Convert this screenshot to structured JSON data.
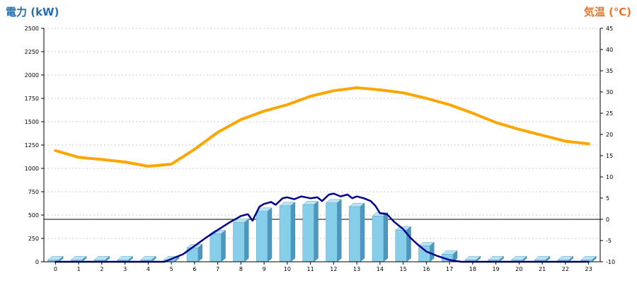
{
  "chart_data": {
    "type": "bar",
    "left_axis_title": "電力 (kW)",
    "right_axis_title": "気温 (℃)",
    "left_ylim": [
      0,
      2500
    ],
    "right_ylim": [
      -10,
      45
    ],
    "left_ticks": [
      0,
      250,
      500,
      750,
      1000,
      1250,
      1500,
      1750,
      2000,
      2250,
      2500
    ],
    "right_ticks": [
      -10,
      -5,
      0,
      5,
      10,
      15,
      20,
      25,
      30,
      35,
      40,
      45
    ],
    "categories": [
      "0",
      "1",
      "2",
      "3",
      "4",
      "5",
      "6",
      "7",
      "8",
      "9",
      "10",
      "11",
      "12",
      "13",
      "14",
      "15",
      "16",
      "17",
      "18",
      "19",
      "20",
      "21",
      "22",
      "23"
    ],
    "grid": "horizontal dashed",
    "reference_line": {
      "axis": "right",
      "value": 0
    },
    "series": [
      {
        "kind": "bar3d",
        "axis": "left",
        "color": "#87ceeb",
        "values": [
          20,
          20,
          20,
          20,
          20,
          20,
          150,
          300,
          420,
          540,
          600,
          610,
          630,
          590,
          490,
          340,
          170,
          80,
          20,
          20,
          20,
          20,
          20,
          20
        ]
      },
      {
        "kind": "line",
        "axis": "left",
        "color": "#00008b",
        "x": [
          0,
          1,
          2,
          3,
          4,
          4.7,
          5,
          5.5,
          6,
          6.5,
          7,
          7.5,
          8,
          8.3,
          8.5,
          8.8,
          9,
          9.3,
          9.5,
          9.8,
          10,
          10.3,
          10.6,
          11,
          11.3,
          11.5,
          11.8,
          12,
          12.3,
          12.6,
          12.8,
          13,
          13.3,
          13.6,
          13.8,
          14,
          14.3,
          14.6,
          15,
          15.3,
          15.6,
          16,
          16.5,
          17,
          17.5,
          18,
          19,
          20,
          21,
          22,
          23
        ],
        "values": [
          0,
          0,
          0,
          0,
          0,
          0,
          30,
          80,
          170,
          260,
          340,
          420,
          490,
          510,
          440,
          590,
          620,
          640,
          610,
          680,
          690,
          670,
          700,
          680,
          690,
          650,
          720,
          730,
          700,
          720,
          680,
          700,
          680,
          650,
          600,
          520,
          510,
          430,
          350,
          260,
          190,
          110,
          60,
          20,
          0,
          0,
          0,
          0,
          0,
          0,
          0
        ]
      },
      {
        "kind": "line",
        "axis": "right",
        "color": "#ffa500",
        "x": [
          0,
          1,
          2,
          3,
          4,
          5,
          6,
          7,
          8,
          9,
          10,
          11,
          12,
          13,
          14,
          15,
          16,
          17,
          18,
          19,
          20,
          21,
          22,
          23
        ],
        "values": [
          16.2,
          14.6,
          14.1,
          13.5,
          12.5,
          13,
          16.5,
          20.5,
          23.5,
          25.5,
          27,
          29,
          30.3,
          31,
          30.5,
          29.8,
          28.5,
          27,
          25,
          22.8,
          21.2,
          19.8,
          18.4,
          17.8
        ]
      }
    ]
  }
}
